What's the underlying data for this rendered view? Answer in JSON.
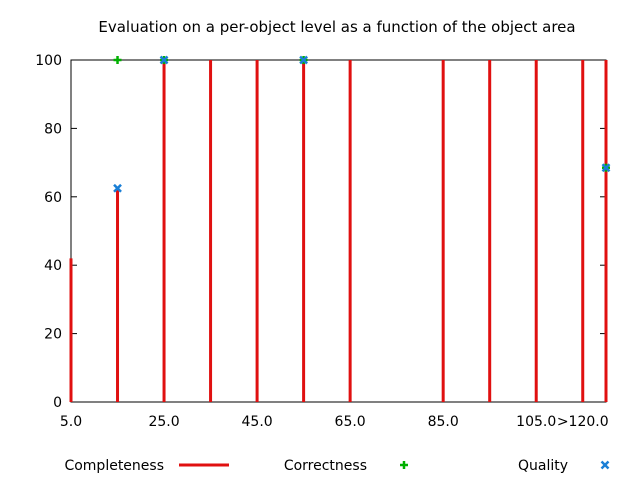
{
  "chart_data": {
    "type": "bar",
    "title": "Evaluation on a per-object level as a function of the object area",
    "xlabel": "",
    "ylabel": "",
    "xlim": [
      5,
      120
    ],
    "ylim": [
      0,
      100
    ],
    "x_ticks": [
      {
        "value": 5,
        "label": "5.0"
      },
      {
        "value": 25,
        "label": "25.0"
      },
      {
        "value": 45,
        "label": "45.0"
      },
      {
        "value": 65,
        "label": "65.0"
      },
      {
        "value": 85,
        "label": "85.0"
      },
      {
        "value": 105,
        "label": "105.0"
      },
      {
        "value": 115,
        "label": ">120.0"
      }
    ],
    "y_ticks": [
      0,
      20,
      40,
      60,
      80,
      100
    ],
    "grid": false,
    "legend_position": "bottom",
    "series": [
      {
        "name": "Completeness",
        "style": "impulses",
        "color": "#e01010",
        "points": [
          {
            "x": 5,
            "y": 42
          },
          {
            "x": 15,
            "y": 62
          },
          {
            "x": 25,
            "y": 100
          },
          {
            "x": 35,
            "y": 100
          },
          {
            "x": 45,
            "y": 100
          },
          {
            "x": 55,
            "y": 100
          },
          {
            "x": 65,
            "y": 100
          },
          {
            "x": 85,
            "y": 100
          },
          {
            "x": 95,
            "y": 100
          },
          {
            "x": 105,
            "y": 100
          },
          {
            "x": 115,
            "y": 100
          },
          {
            "x": 120,
            "y": 100
          }
        ]
      },
      {
        "name": "Correctness",
        "style": "plus",
        "color": "#00b000",
        "points": [
          {
            "x": 15,
            "y": 100
          },
          {
            "x": 25,
            "y": 100
          },
          {
            "x": 55,
            "y": 100
          },
          {
            "x": 120,
            "y": 68.5
          }
        ]
      },
      {
        "name": "Quality",
        "style": "cross",
        "color": "#1a7fd6",
        "points": [
          {
            "x": 15,
            "y": 62.5
          },
          {
            "x": 25,
            "y": 100
          },
          {
            "x": 55,
            "y": 100
          },
          {
            "x": 120,
            "y": 68.5
          }
        ]
      }
    ]
  }
}
